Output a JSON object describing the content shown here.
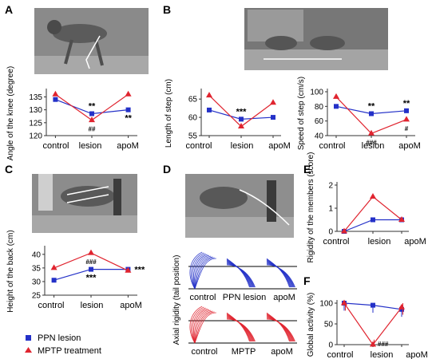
{
  "panels": {
    "A": "A",
    "B": "B",
    "C": "C",
    "D": "D",
    "E": "E",
    "F": "F"
  },
  "colors": {
    "ppn": "#2431c8",
    "mptp": "#e0242f",
    "axis": "#333333",
    "photo_bg": "#8f8f8f"
  },
  "legend": {
    "ppn": {
      "label": "PPN lesion",
      "marker": "square"
    },
    "mptp": {
      "label": "MPTP treatment",
      "marker": "triangle"
    }
  },
  "photos": {
    "A": "monkey-walking-knee-angle-photo",
    "B": "two-monkeys-step-length-photo",
    "C": "monkey-back-height-photo",
    "D": "monkey-tail-position-photo"
  },
  "axial": {
    "ylabel": "Axial rigidity (tail position)",
    "ppn_labels": [
      "control",
      "PPN lesion",
      "apoM"
    ],
    "mptp_labels": [
      "control",
      "MPTP",
      "apoM"
    ]
  },
  "chart_data": [
    {
      "id": "A",
      "type": "line",
      "categories": [
        "control",
        "lesion",
        "apoM"
      ],
      "ylabel": "Angle of the knee (degree)",
      "ylim": [
        120,
        137
      ],
      "yticks": [
        120,
        125,
        130,
        135
      ],
      "series": [
        {
          "name": "PPN lesion",
          "values": [
            134,
            128.5,
            130
          ]
        },
        {
          "name": "MPTP treatment",
          "values": [
            136,
            126,
            136
          ]
        }
      ],
      "annotations": [
        {
          "category": "lesion",
          "text": "**",
          "color": "black",
          "pos": "above"
        },
        {
          "category": "lesion",
          "text": "##",
          "color": "black",
          "pos": "below"
        },
        {
          "category": "apoM",
          "text": "**",
          "color": "black",
          "pos": "below"
        }
      ]
    },
    {
      "id": "B1",
      "type": "line",
      "categories": [
        "control",
        "lesion",
        "apoM"
      ],
      "ylabel": "Length of step (cm)",
      "ylim": [
        55,
        67
      ],
      "yticks": [
        55,
        60,
        65
      ],
      "series": [
        {
          "name": "PPN lesion",
          "values": [
            62,
            59.5,
            60
          ]
        },
        {
          "name": "MPTP treatment",
          "values": [
            66,
            57.5,
            64
          ]
        }
      ],
      "annotations": [
        {
          "category": "lesion",
          "text": "***",
          "color": "black",
          "pos": "above"
        }
      ]
    },
    {
      "id": "B2",
      "type": "line",
      "categories": [
        "control",
        "lesion",
        "apoM"
      ],
      "ylabel": "Speed of step (cm/s)",
      "ylim": [
        40,
        100
      ],
      "yticks": [
        40,
        60,
        80,
        100
      ],
      "series": [
        {
          "name": "PPN lesion",
          "values": [
            80,
            70,
            74
          ]
        },
        {
          "name": "MPTP treatment",
          "values": [
            93,
            43,
            62
          ]
        }
      ],
      "annotations": [
        {
          "category": "lesion",
          "text": "**",
          "color": "black",
          "pos": "above"
        },
        {
          "category": "lesion",
          "text": "###",
          "color": "black",
          "pos": "below"
        },
        {
          "category": "apoM",
          "text": "**",
          "color": "black",
          "pos": "above"
        },
        {
          "category": "apoM",
          "text": "#",
          "color": "black",
          "pos": "below"
        }
      ]
    },
    {
      "id": "C",
      "type": "line",
      "categories": [
        "control",
        "lesion",
        "apoM"
      ],
      "ylabel": "Height of the back (cm)",
      "ylim": [
        25,
        42
      ],
      "yticks": [
        25,
        30,
        35,
        40
      ],
      "series": [
        {
          "name": "PPN lesion",
          "values": [
            30.5,
            34.5,
            34.5
          ]
        },
        {
          "name": "MPTP treatment",
          "values": [
            35,
            40.5,
            34
          ]
        }
      ],
      "annotations": [
        {
          "category": "lesion",
          "text": "###",
          "color": "black",
          "pos": "below"
        },
        {
          "category": "lesion",
          "text": "***",
          "color": "black",
          "pos": "below2"
        },
        {
          "category": "apoM",
          "text": "***",
          "color": "black",
          "pos": "right"
        }
      ]
    },
    {
      "id": "E",
      "type": "line",
      "categories": [
        "control",
        "lesion",
        "apoM"
      ],
      "ylabel": "Rigidity of the members (score)",
      "ylim": [
        0,
        2
      ],
      "yticks": [
        0,
        1,
        2
      ],
      "series": [
        {
          "name": "PPN lesion",
          "values": [
            0,
            0.5,
            0.5
          ]
        },
        {
          "name": "MPTP treatment",
          "values": [
            0,
            1.5,
            0.5
          ]
        }
      ],
      "annotations": []
    },
    {
      "id": "F",
      "type": "line",
      "categories": [
        "control",
        "lesion",
        "apoM"
      ],
      "ylabel": "Global activity (%)",
      "ylim": [
        0,
        100
      ],
      "yticks": [
        0,
        50,
        100
      ],
      "series": [
        {
          "name": "PPN lesion",
          "values": [
            100,
            95,
            85
          ]
        },
        {
          "name": "MPTP treatment",
          "values": [
            100,
            0,
            90
          ]
        }
      ],
      "annotations": [
        {
          "category": "lesion",
          "text": "###",
          "color": "black",
          "pos": "right"
        }
      ]
    }
  ]
}
